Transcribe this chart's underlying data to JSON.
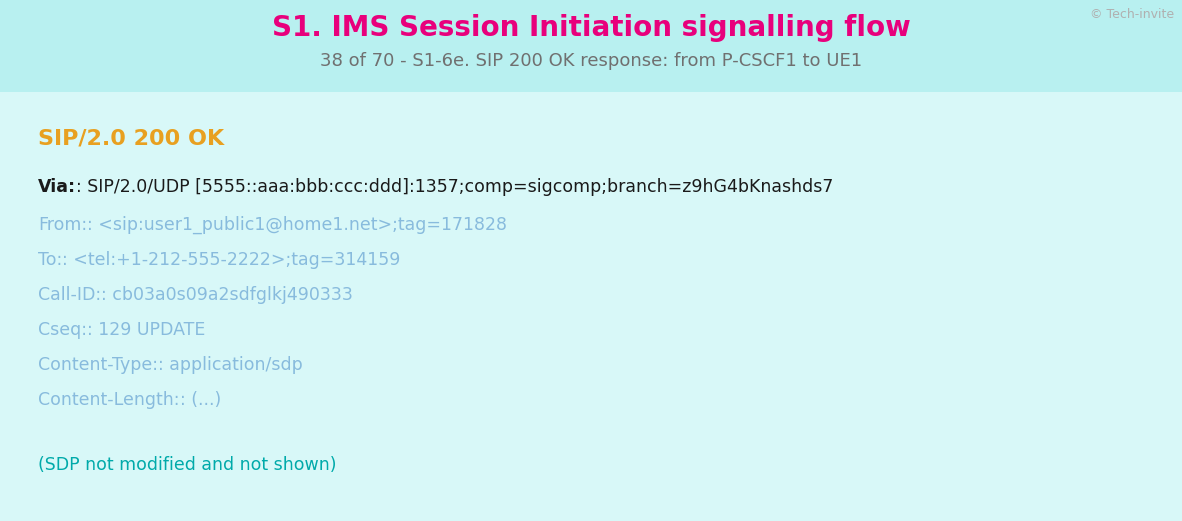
{
  "bg_color": "#d8f8f8",
  "header_bg_color": "#b8f0f0",
  "title": "S1. IMS Session Initiation signalling flow",
  "title_color": "#e8007c",
  "subtitle": "38 of 70 - S1-6e. SIP 200 OK response: from P-CSCF1 to UE1",
  "subtitle_color": "#707070",
  "watermark": "© Tech-invite",
  "watermark_color": "#b0b0b0",
  "sip_status": "SIP/2.0 200 OK",
  "sip_status_color": "#e8a020",
  "via_label": "Via",
  "via_label_color": "#1a1a1a",
  "via_value": ": SIP/2.0/UDP [5555::aaa:bbb:ccc:ddd]:1357;comp=sigcomp;branch=z9hG4bKnashds7",
  "via_value_color": "#1a1a1a",
  "fields": [
    {
      "label": "From",
      "label_color": "#88bbdd",
      "value": ": <sip:user1_public1@home1.net>;tag=171828",
      "value_color": "#88bbdd"
    },
    {
      "label": "To",
      "label_color": "#88bbdd",
      "value": ": <tel:+1-212-555-2222>;tag=314159",
      "value_color": "#88bbdd"
    },
    {
      "label": "Call-ID",
      "label_color": "#88bbdd",
      "value": ": cb03a0s09a2sdfglkj490333",
      "value_color": "#88bbdd"
    },
    {
      "label": "Cseq",
      "label_color": "#88bbdd",
      "value": ": 129 UPDATE",
      "value_color": "#88bbdd"
    },
    {
      "label": "Content-Type",
      "label_color": "#88bbdd",
      "value": ": application/sdp",
      "value_color": "#88bbdd"
    },
    {
      "label": "Content-Length",
      "label_color": "#88bbdd",
      "value": ": (...)",
      "value_color": "#88bbdd"
    }
  ],
  "footer": "(SDP not modified and not shown)",
  "footer_color": "#00aaaa",
  "fig_width": 11.82,
  "fig_height": 5.21,
  "dpi": 100
}
